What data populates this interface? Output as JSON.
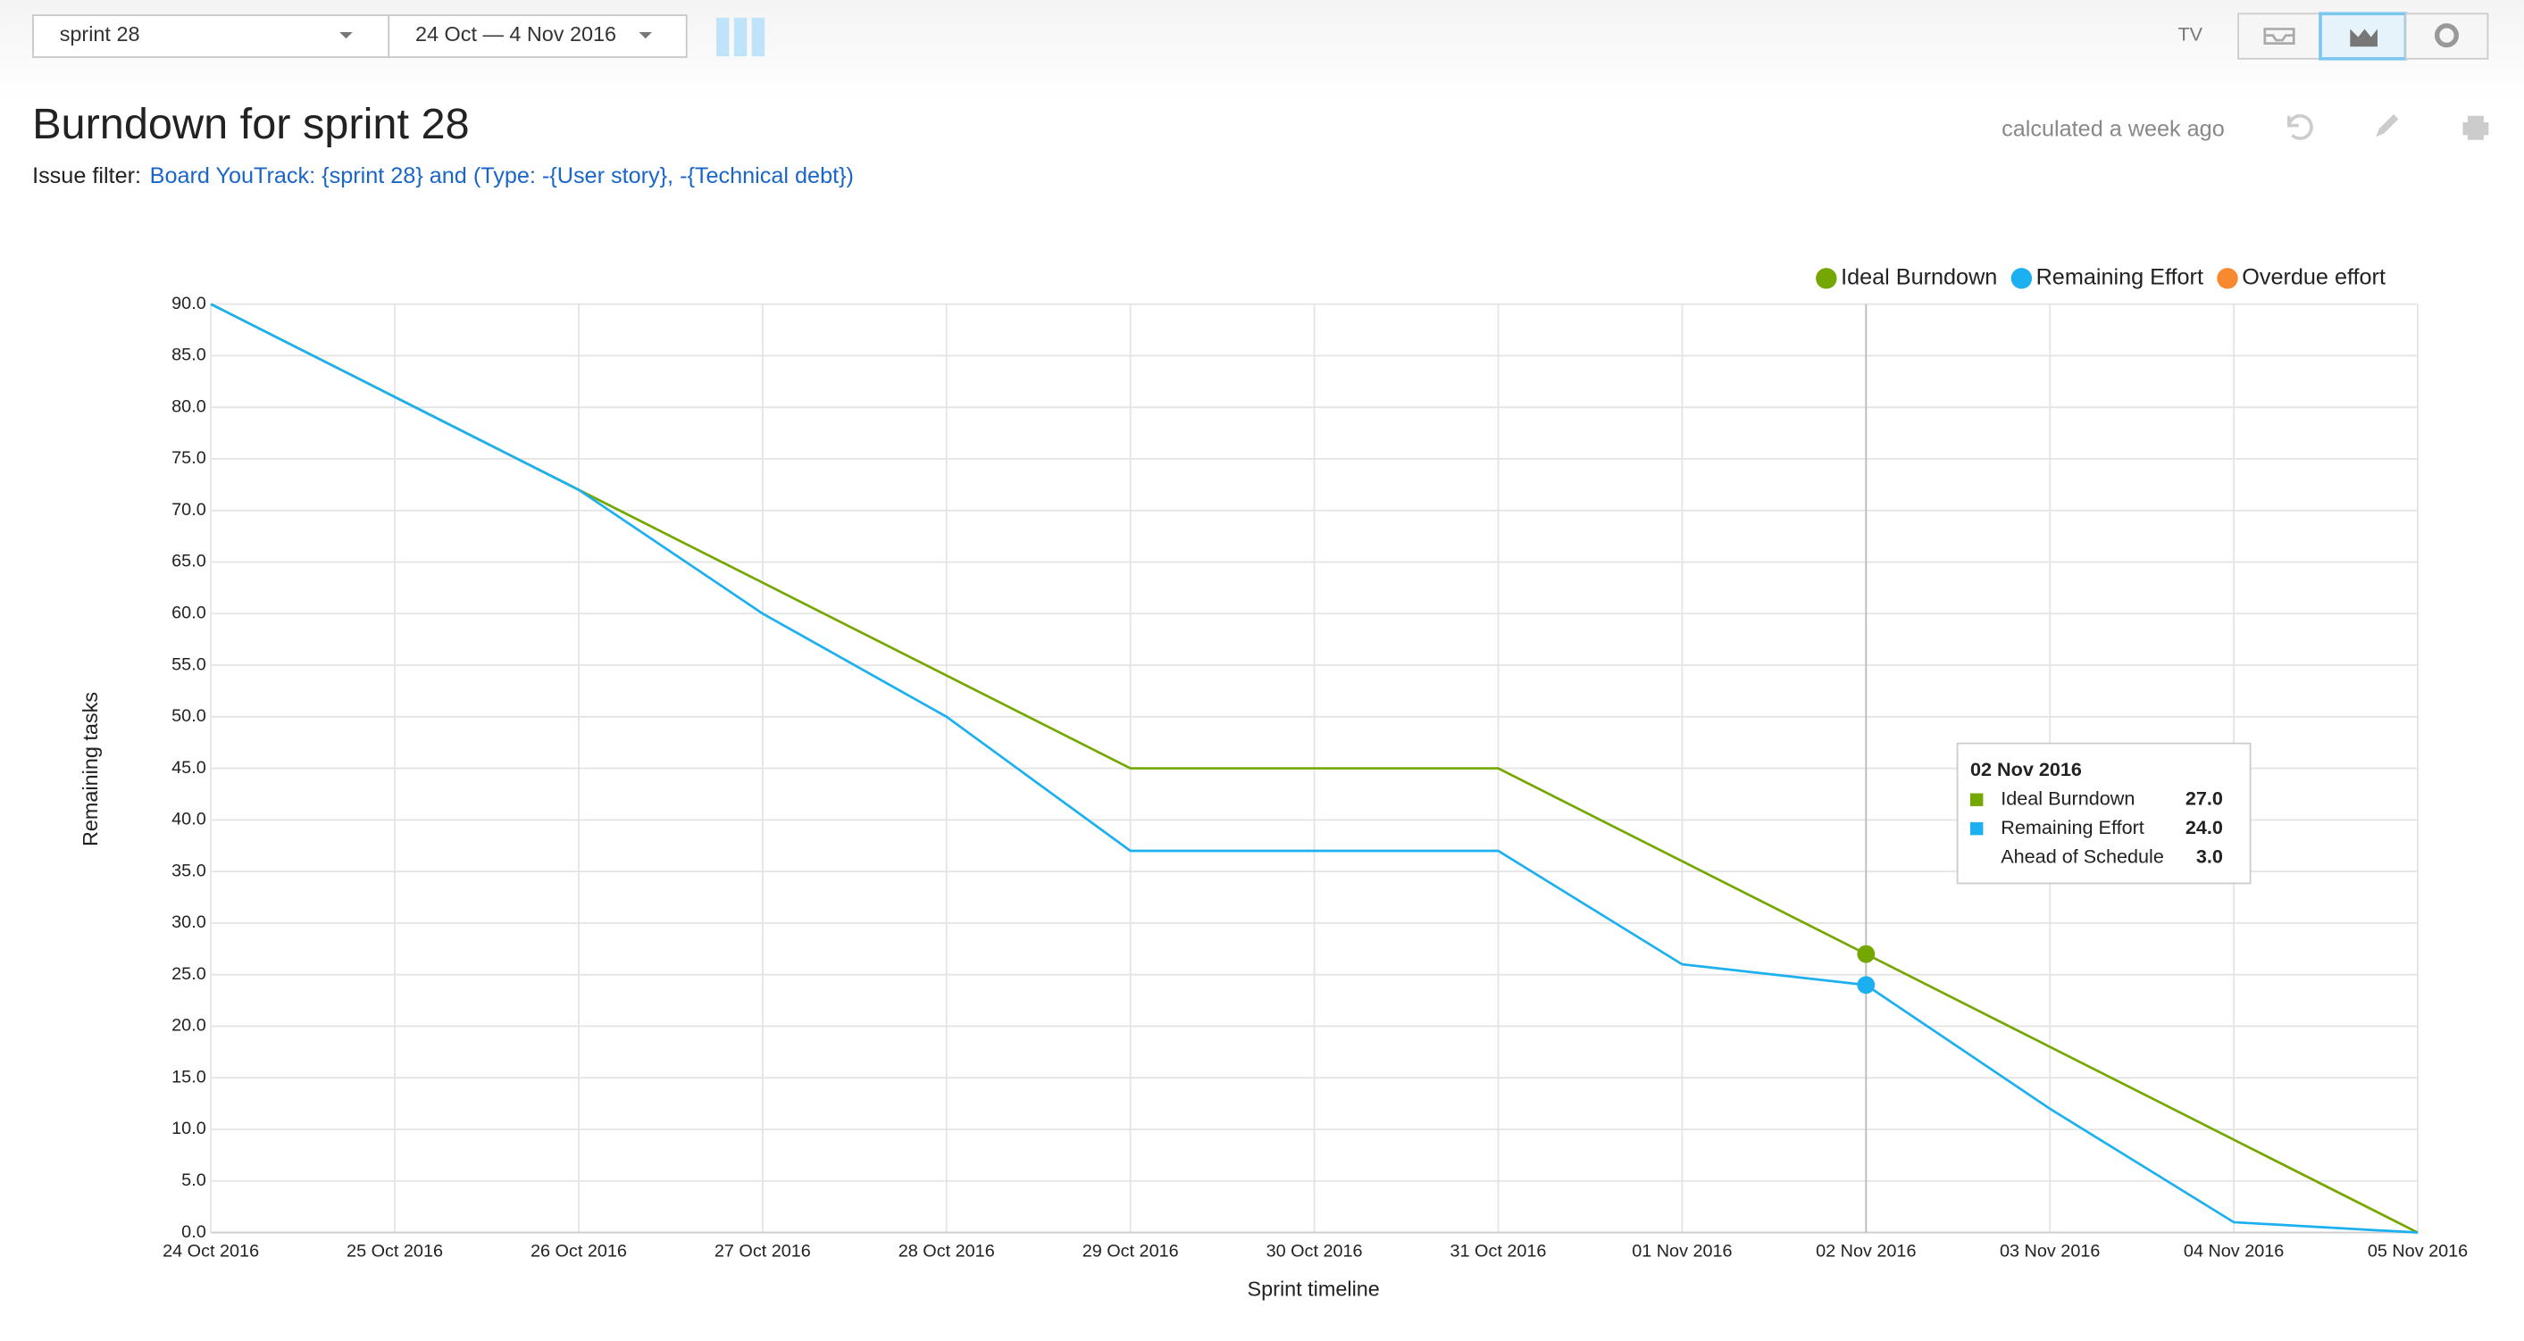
{
  "toolbar": {
    "sprint": "sprint 28",
    "period": "24 Oct — 4 Nov 2016",
    "tv": "TV"
  },
  "header": {
    "title": "Burndown for sprint 28",
    "status": "calculated a week ago",
    "filter_label": "Issue filter:",
    "filter": "Board YouTrack: {sprint 28} and (Type: -{User story}, -{Technical debt})"
  },
  "chart_data": {
    "type": "line",
    "y_label": "Remaining tasks",
    "x_label": "Sprint timeline",
    "categories": [
      "24 Oct 2016",
      "25 Oct 2016",
      "26 Oct 2016",
      "27 Oct 2016",
      "28 Oct 2016",
      "29 Oct 2016",
      "30 Oct 2016",
      "31 Oct 2016",
      "01 Nov 2016",
      "02 Nov 2016",
      "03 Nov 2016",
      "04 Nov 2016",
      "05 Nov 2016"
    ],
    "series": [
      {
        "name": "Ideal Burndown",
        "color": "#74a800",
        "values": [
          90,
          81,
          72,
          63,
          54,
          45,
          45,
          45,
          36,
          27,
          18,
          9,
          0
        ]
      },
      {
        "name": "Remaining Effort",
        "color": "#1cb0f0",
        "values": [
          90,
          81,
          72,
          60,
          50,
          37,
          37,
          37,
          26,
          24,
          12,
          1,
          0
        ]
      },
      {
        "name": "Overdue effort",
        "color": "#f7892f",
        "values": [
          null,
          null,
          null,
          null,
          null,
          null,
          null,
          null,
          null,
          null,
          null,
          null,
          null
        ]
      }
    ],
    "ylim": [
      0,
      90
    ],
    "yticks": [
      {
        "value": 0,
        "label": "0.0"
      },
      {
        "value": 5,
        "label": "5.0"
      },
      {
        "value": 10,
        "label": "10.0"
      },
      {
        "value": 15,
        "label": "15.0"
      },
      {
        "value": 20,
        "label": "20.0"
      },
      {
        "value": 25,
        "label": "25.0"
      },
      {
        "value": 30,
        "label": "30.0"
      },
      {
        "value": 35,
        "label": "35.0"
      },
      {
        "value": 40,
        "label": "40.0"
      },
      {
        "value": 45,
        "label": "45.0"
      },
      {
        "value": 50,
        "label": "50.0"
      },
      {
        "value": 55,
        "label": "55.0"
      },
      {
        "value": 60,
        "label": "60.0"
      },
      {
        "value": 65,
        "label": "65.0"
      },
      {
        "value": 70,
        "label": "70.0"
      },
      {
        "value": 75,
        "label": "75.0"
      },
      {
        "value": 80,
        "label": "80.0"
      },
      {
        "value": 85,
        "label": "85.0"
      },
      {
        "value": 90,
        "label": "90.0"
      }
    ],
    "grid": true,
    "legend": "top-right",
    "tooltip": {
      "title": "02 Nov 2016",
      "rows": [
        {
          "name": "Ideal Burndown",
          "value": 27,
          "label": "27.0"
        },
        {
          "name": "Remaining Effort",
          "value": 24,
          "label": "24.0"
        },
        {
          "name": "Ahead of Schedule",
          "value": 3,
          "label": "3.0"
        }
      ]
    }
  }
}
